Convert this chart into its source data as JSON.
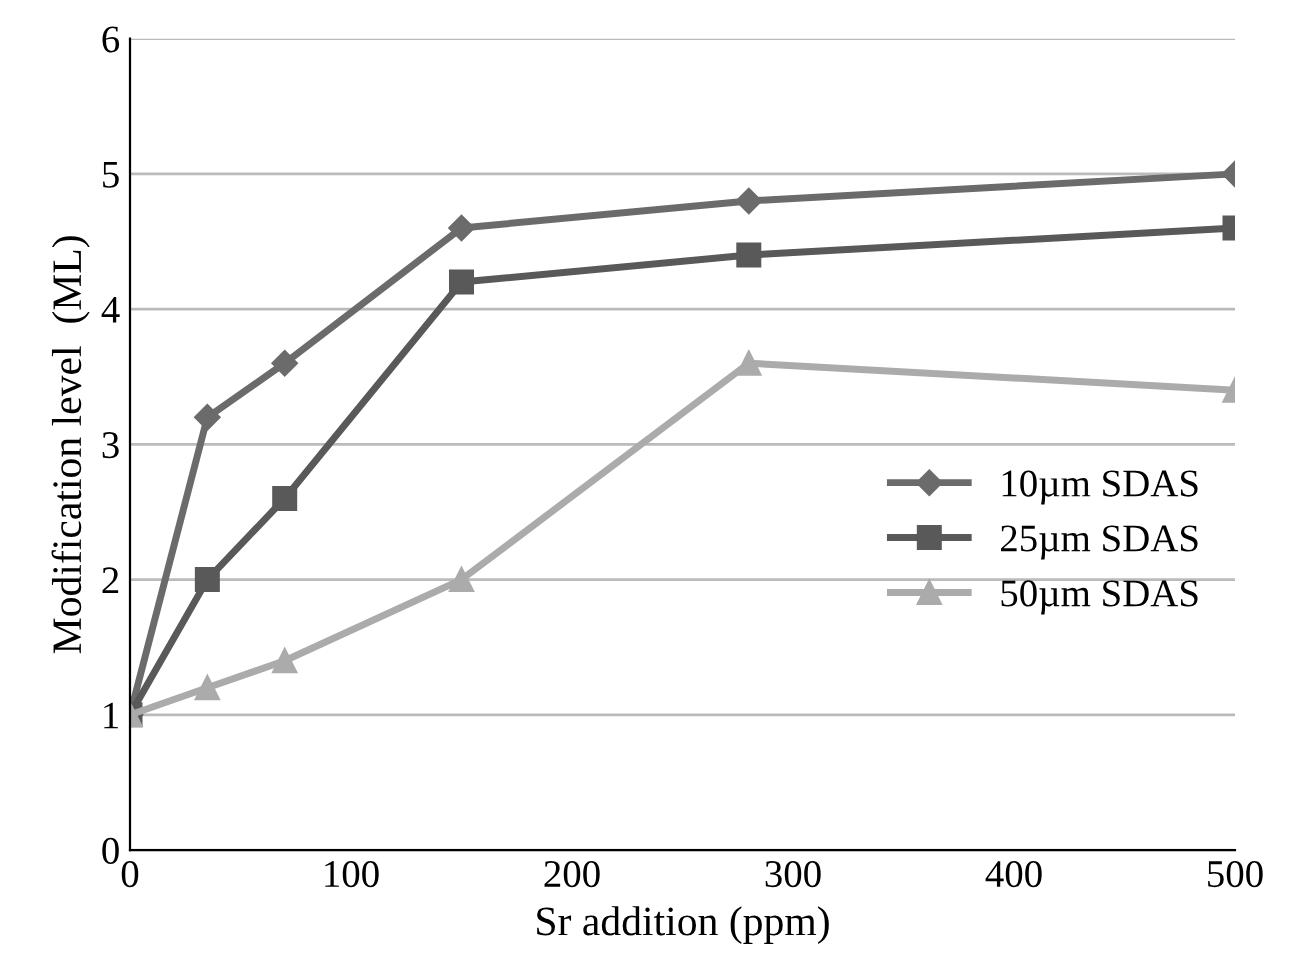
{
  "chart_data": {
    "type": "line",
    "xlabel": "Sr addition (ppm)",
    "ylabel": "Modification level  (ML)",
    "x": [
      0,
      35,
      70,
      150,
      280,
      500
    ],
    "series": [
      {
        "name": "10µm SDAS",
        "color": "#6b6b6b",
        "marker": "diamond",
        "values": [
          1,
          3.2,
          3.6,
          4.6,
          4.8,
          5.0
        ]
      },
      {
        "name": "25µm SDAS",
        "color": "#595959",
        "marker": "square",
        "values": [
          1,
          2.0,
          2.6,
          4.2,
          4.4,
          4.6
        ]
      },
      {
        "name": "50µm SDAS",
        "color": "#ababab",
        "marker": "triangle",
        "values": [
          1,
          1.2,
          1.4,
          2.0,
          3.6,
          3.4
        ]
      }
    ],
    "xlim": [
      0,
      500
    ],
    "xticks": [
      0,
      100,
      200,
      300,
      400,
      500
    ],
    "ylim": [
      0,
      6
    ],
    "yticks": [
      0,
      1,
      2,
      3,
      4,
      5,
      6
    ],
    "grid": "y",
    "legend": "center right",
    "line_style": "solid"
  }
}
